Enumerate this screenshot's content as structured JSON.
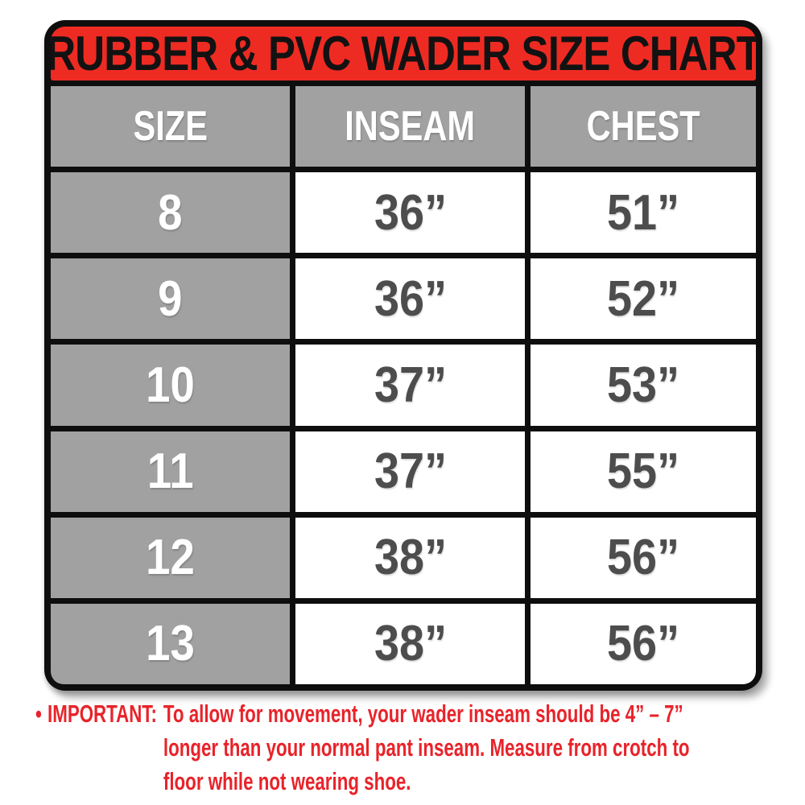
{
  "chart": {
    "colors": {
      "frame": "#0e0e0e",
      "title_bg": "#ee2b23",
      "title_text": "#121212",
      "header_cell_bg": "#a1a1a1",
      "header_text": "#ffffff",
      "size_cell_bg": "#a1a1a1",
      "size_text": "#ffffff",
      "value_cell_bg": "#ffffff",
      "value_text": "#4d4d4d",
      "page_bg": "#ffffff",
      "note_text": "#e8232a"
    }
  },
  "chart_data": {
    "type": "table",
    "title": "RUBBER & PVC WADER SIZE CHART",
    "columns": [
      "SIZE",
      "INSEAM",
      "CHEST"
    ],
    "rows": [
      [
        "8",
        "36”",
        "51”"
      ],
      [
        "9",
        "36”",
        "52”"
      ],
      [
        "10",
        "37”",
        "53”"
      ],
      [
        "11",
        "37”",
        "55”"
      ],
      [
        "12",
        "38”",
        "56”"
      ],
      [
        "13",
        "38”",
        "56”"
      ]
    ],
    "footnote": "IMPORTANT: To allow for movement, your wader inseam should be 4” – 7” longer than your normal pant inseam. Measure from crotch to floor while not wearing shoe."
  },
  "note": {
    "bullet": "•",
    "label": "IMPORTANT:",
    "lines": [
      "To allow for movement, your wader inseam should be 4” – 7”",
      "longer than your normal pant inseam. Measure from crotch to",
      "floor while not wearing shoe."
    ],
    "color": "#e8232a"
  }
}
